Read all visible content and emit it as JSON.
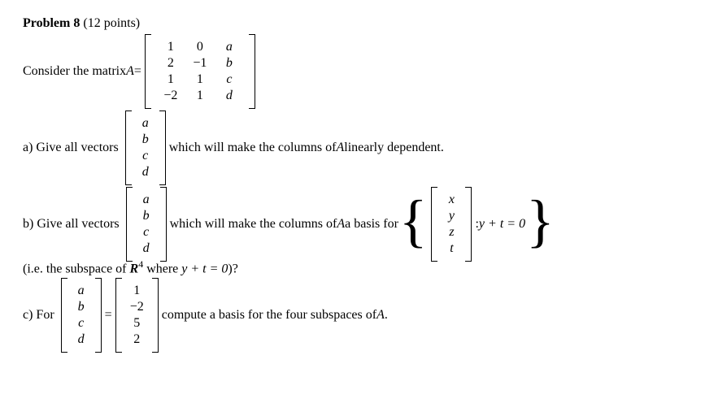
{
  "header": {
    "title": "Problem 8",
    "points": "(12 points)"
  },
  "intro": {
    "pre": "Consider the matrix ",
    "var": "A",
    "eq": " = "
  },
  "matrixA": {
    "rows": [
      [
        "1",
        "0",
        "a"
      ],
      [
        "2",
        "−1",
        "b"
      ],
      [
        "1",
        "1",
        "c"
      ],
      [
        "−2",
        "1",
        "d"
      ]
    ]
  },
  "vec_abcd": [
    "a",
    "b",
    "c",
    "d"
  ],
  "vec_xyzt": [
    "x",
    "y",
    "z",
    "t"
  ],
  "vec_vals": [
    "1",
    "−2",
    "5",
    "2"
  ],
  "partA": {
    "label": "a) Give all vectors ",
    "after": " which will make the columns of ",
    "var": "A",
    "end": " linearly dependent."
  },
  "partB": {
    "label": "b) Give all vectors ",
    "after": " which will make the columns of ",
    "var": "A",
    "end": " a basis for ",
    "cond_pre": ": ",
    "cond": "y + t = 0"
  },
  "partB2": {
    "pre": "(i.e. the subspace of ",
    "space": "R",
    "sup": "4",
    "post": " where ",
    "eq": "y + t = 0",
    "end": ")?"
  },
  "partC": {
    "label": "c) For ",
    "eq": " = ",
    "after": " compute a basis for the four subspaces of ",
    "var": "A",
    "end": "."
  }
}
